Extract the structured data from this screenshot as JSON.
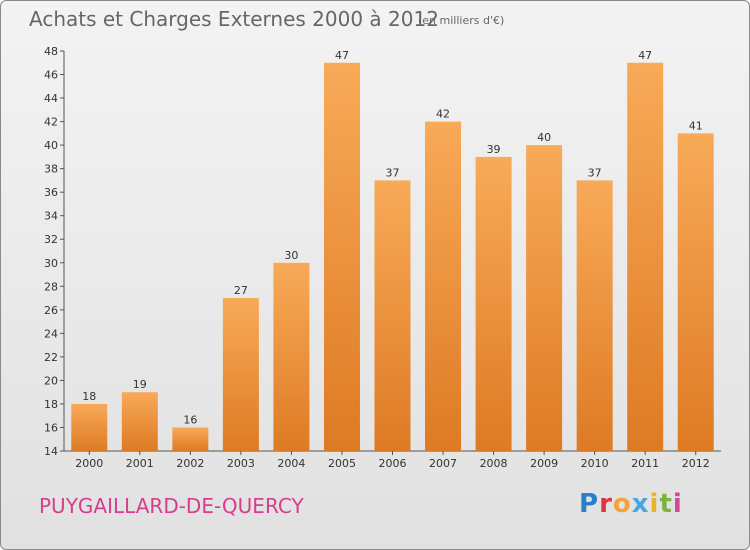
{
  "title": "Achats et Charges Externes 2000 à 2012",
  "subtitle": "(en milliers d'€)",
  "commune": "PUYGAILLARD-DE-QUERCY",
  "logo": {
    "letters": [
      "P",
      "r",
      "o",
      "x",
      "i",
      "t",
      "i"
    ],
    "colors": [
      "#2b7ec9",
      "#e3323e",
      "#f2a33a",
      "#45a9de",
      "#e8b32b",
      "#7cb342",
      "#d24a9a"
    ]
  },
  "colors": {
    "bar_light": "#f8aa58",
    "bar_dark": "#de7a24",
    "title": "#666666",
    "commune": "#d93c8f"
  },
  "chart_data": {
    "type": "bar",
    "categories": [
      "2000",
      "2001",
      "2002",
      "2003",
      "2004",
      "2005",
      "2006",
      "2007",
      "2008",
      "2009",
      "2010",
      "2011",
      "2012"
    ],
    "values": [
      18,
      19,
      16,
      27,
      30,
      47,
      37,
      42,
      39,
      40,
      37,
      47,
      41
    ],
    "ylim": [
      14,
      48
    ],
    "yticks": [
      14,
      16,
      18,
      20,
      22,
      24,
      26,
      28,
      30,
      32,
      34,
      36,
      38,
      40,
      42,
      44,
      46,
      48
    ],
    "xlabel": "",
    "ylabel": "",
    "grid": false,
    "data_labels": true
  }
}
